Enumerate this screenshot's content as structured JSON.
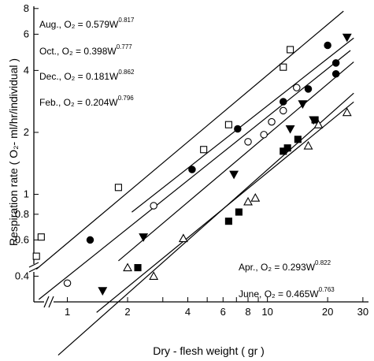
{
  "chart_data": {
    "type": "scatter",
    "title": "",
    "xlabel": "Dry - flesh   weight ( gr )",
    "ylabel": "Respiration rate ( O₂- ml/hr/individual )",
    "x_scale": "log",
    "y_scale": "log",
    "xlim": [
      0.68,
      32
    ],
    "ylim": [
      0.3,
      8.2
    ],
    "x_ticks": [
      1,
      2,
      3,
      4,
      5,
      6,
      7,
      8,
      9,
      10,
      20,
      30
    ],
    "x_tick_labels": [
      "1",
      "2",
      "4",
      "6",
      "8",
      "10",
      "20",
      "30"
    ],
    "y_ticks": [
      0.4,
      0.6,
      0.8,
      1,
      2,
      4,
      6,
      8
    ],
    "y_tick_labels": [
      "0.4",
      "0.6",
      "0.8",
      "1",
      "2",
      "4",
      "6",
      "8"
    ],
    "grid": false,
    "series": [
      {
        "name": "Aug.",
        "marker": "open-square",
        "equation_label": "Aug., O₂ = 0.579W",
        "exponent_label": "0.817",
        "a": 0.579,
        "b": 0.817,
        "line_x": [
          0.7,
          24
        ],
        "points": [
          [
            0.7,
            0.5
          ],
          [
            0.74,
            0.62
          ],
          [
            1.8,
            1.08
          ],
          [
            4.8,
            1.65
          ],
          [
            6.4,
            2.18
          ],
          [
            12,
            4.15
          ],
          [
            13,
            5.05
          ]
        ]
      },
      {
        "name": "Oct.",
        "marker": "filled-circle",
        "equation_label": "Oct., O₂ = 0.398W",
        "exponent_label": "0.777",
        "a": 0.398,
        "b": 0.777,
        "line_x": [
          0.72,
          26
        ],
        "points": [
          [
            1.3,
            0.6
          ],
          [
            4.2,
            1.32
          ],
          [
            7.1,
            2.08
          ],
          [
            12,
            2.82
          ],
          [
            16,
            3.25
          ],
          [
            20,
            5.3
          ],
          [
            22,
            4.35
          ],
          [
            22,
            3.85
          ]
        ]
      },
      {
        "name": "Dec.",
        "marker": "open-circle",
        "equation_label": "Dec., O₂ = 0.181W",
        "exponent_label": "0.862",
        "a": 0.181,
        "b": 0.862,
        "line_x": [
          0.9,
          27
        ],
        "points": [
          [
            1.0,
            0.37
          ],
          [
            2.7,
            0.88
          ],
          [
            8,
            1.8
          ],
          [
            9.6,
            1.95
          ],
          [
            10.5,
            2.25
          ],
          [
            12,
            2.55
          ],
          [
            14,
            3.3
          ]
        ]
      },
      {
        "name": "Feb.",
        "marker": "filled-triangle-down",
        "equation_label": "Feb., O₂ = 0.204W",
        "exponent_label": "0.796",
        "a": 0.204,
        "b": 0.796,
        "line_x": [
          1.4,
          27
        ],
        "points": [
          [
            1.5,
            0.34
          ],
          [
            2.4,
            0.62
          ],
          [
            6.8,
            1.25
          ],
          [
            13,
            2.08
          ],
          [
            15,
            2.75
          ],
          [
            17,
            2.3
          ],
          [
            25,
            5.8
          ]
        ]
      },
      {
        "name": "Apr.",
        "marker": "filled-square",
        "equation_label": "Apr., O₂ = 0.293W",
        "exponent_label": "0.822",
        "a": 0.293,
        "b": 0.822,
        "line_x": [
          1.8,
          27
        ],
        "points": [
          [
            2.25,
            0.44
          ],
          [
            6.4,
            0.74
          ],
          [
            7.2,
            0.82
          ],
          [
            12,
            1.62
          ],
          [
            12.6,
            1.68
          ],
          [
            14.2,
            1.85
          ],
          [
            17.3,
            2.3
          ]
        ]
      },
      {
        "name": "June",
        "marker": "open-triangle",
        "equation_label": "June, O₂ = 0.465W",
        "exponent_label": "0.763",
        "a": 0.465,
        "b": 0.763,
        "line_x": [
          2.1,
          27
        ],
        "points": [
          [
            2.0,
            0.44
          ],
          [
            2.7,
            0.4
          ],
          [
            3.8,
            0.61
          ],
          [
            8,
            0.92
          ],
          [
            8.7,
            0.96
          ],
          [
            16,
            1.72
          ],
          [
            18,
            2.18
          ],
          [
            25,
            2.5
          ]
        ]
      }
    ]
  }
}
